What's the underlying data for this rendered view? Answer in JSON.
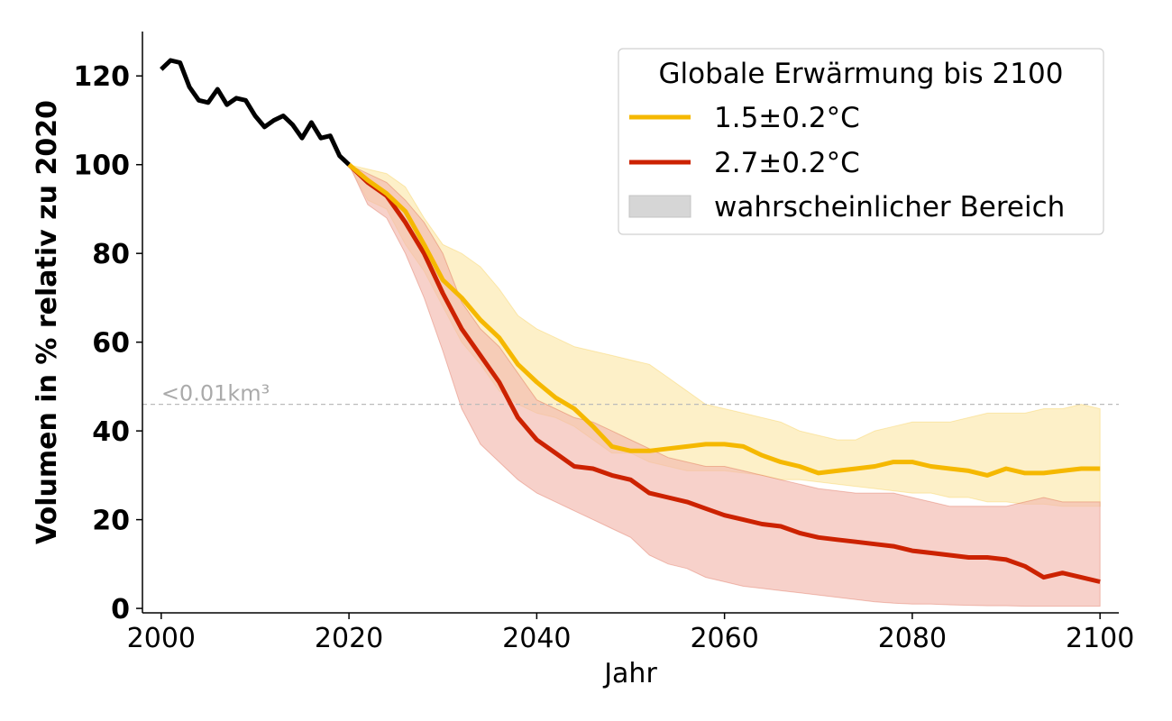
{
  "chart_data": {
    "type": "line",
    "xlabel": "Jahr",
    "ylabel": "Volumen in % relativ zu 2020",
    "xlim": [
      1998,
      2102
    ],
    "ylim": [
      -1,
      130
    ],
    "xticks": [
      2000,
      2020,
      2040,
      2060,
      2080,
      2100
    ],
    "yticks": [
      0,
      20,
      40,
      60,
      80,
      100,
      120
    ],
    "grid": false,
    "legend": {
      "title": "Globale Erwärmung bis 2100",
      "placement": "top-right",
      "entries": [
        "1.5±0.2°C",
        "2.7±0.2°C",
        "wahrscheinlicher Bereich"
      ]
    },
    "annotation": {
      "text": "<0.01km³",
      "y": 46
    },
    "historical": {
      "color": "#000000",
      "x": [
        2000,
        2001,
        2002,
        2003,
        2004,
        2005,
        2006,
        2007,
        2008,
        2009,
        2010,
        2011,
        2012,
        2013,
        2014,
        2015,
        2016,
        2017,
        2018,
        2019,
        2020
      ],
      "y": [
        121.5,
        123.5,
        123,
        117.5,
        114.5,
        114,
        117,
        113.5,
        115,
        114.5,
        111,
        108.5,
        110,
        111,
        109,
        106,
        109.5,
        106,
        106.5,
        102,
        100
      ]
    },
    "series": [
      {
        "name": "1.5±0.2°C",
        "color": "#f5b800",
        "band_color": "#fce9b0",
        "x": [
          2020,
          2022,
          2024,
          2026,
          2028,
          2030,
          2032,
          2034,
          2036,
          2038,
          2040,
          2042,
          2044,
          2046,
          2048,
          2050,
          2052,
          2054,
          2056,
          2058,
          2060,
          2062,
          2064,
          2066,
          2068,
          2070,
          2072,
          2074,
          2076,
          2078,
          2080,
          2082,
          2084,
          2086,
          2088,
          2090,
          2092,
          2094,
          2096,
          2098,
          2100
        ],
        "y": [
          100,
          96.5,
          93.5,
          89.5,
          82,
          74,
          70,
          65,
          61,
          55,
          51,
          47.5,
          45,
          41,
          36.5,
          35.5,
          35.5,
          36,
          36.5,
          37,
          37,
          36.5,
          34.5,
          33,
          32,
          30.5,
          31,
          31.5,
          32,
          33,
          33,
          32,
          31.5,
          31,
          30,
          31.5,
          30.5,
          30.5,
          31,
          31.5,
          31.5
        ],
        "low": [
          100,
          92,
          90,
          82,
          76,
          68,
          60,
          55,
          49,
          46,
          44,
          43,
          41,
          38,
          35,
          35,
          33,
          32,
          31,
          31,
          31,
          30.5,
          30,
          29,
          29,
          28.5,
          28,
          27.5,
          27,
          26.5,
          26,
          26,
          25,
          25,
          24,
          24,
          23.5,
          23.5,
          23,
          23,
          23
        ],
        "high": [
          100,
          99,
          98,
          95,
          88,
          82,
          80,
          77,
          72,
          66,
          63,
          61,
          59,
          58,
          57,
          56,
          55,
          52,
          49,
          46,
          45,
          44,
          43,
          42,
          40,
          39,
          38,
          38,
          40,
          41,
          42,
          42,
          42,
          43,
          44,
          44,
          44,
          45,
          45,
          46,
          45
        ]
      },
      {
        "name": "2.7±0.2°C",
        "color": "#cc2200",
        "band_color": "#f2b8ae",
        "x": [
          2020,
          2022,
          2024,
          2026,
          2028,
          2030,
          2032,
          2034,
          2036,
          2038,
          2040,
          2042,
          2044,
          2046,
          2048,
          2050,
          2052,
          2054,
          2056,
          2058,
          2060,
          2062,
          2064,
          2066,
          2068,
          2070,
          2072,
          2074,
          2076,
          2078,
          2080,
          2082,
          2084,
          2086,
          2088,
          2090,
          2092,
          2094,
          2096,
          2098,
          2100
        ],
        "y": [
          100,
          96,
          93,
          87,
          80,
          71,
          63,
          57,
          51,
          43,
          38,
          35,
          32,
          31.5,
          30,
          29,
          26,
          25,
          24,
          22.5,
          21,
          20,
          19,
          18.5,
          17,
          16,
          15.5,
          15,
          14.5,
          14,
          13,
          12.5,
          12,
          11.5,
          11.5,
          11,
          9.5,
          7,
          8,
          7,
          6
        ],
        "low": [
          100,
          91,
          88,
          80,
          70,
          58,
          45,
          37,
          33,
          29,
          26,
          24,
          22,
          20,
          18,
          16,
          12,
          10,
          9,
          7,
          6,
          5,
          4.5,
          4,
          3.5,
          3,
          2.5,
          2,
          1.5,
          1.2,
          1,
          1,
          0.8,
          0.7,
          0.6,
          0.6,
          0.5,
          0.5,
          0.5,
          0.5,
          0.5
        ],
        "high": [
          100,
          98,
          96,
          92,
          87,
          80,
          69,
          63,
          59,
          53,
          47,
          45,
          43,
          42,
          40,
          38,
          36,
          34,
          33,
          32,
          32,
          31,
          30,
          29,
          28,
          27,
          26.5,
          26,
          26,
          26,
          25,
          24,
          23,
          23,
          23,
          23,
          24,
          25,
          24,
          24,
          24
        ]
      }
    ]
  }
}
